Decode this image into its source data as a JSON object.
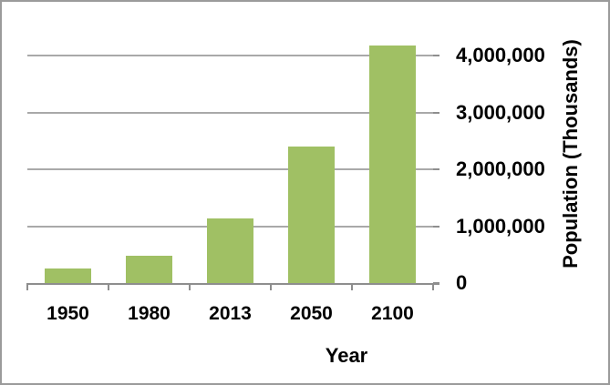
{
  "chart_data": {
    "type": "bar",
    "title": "",
    "xlabel": "Year",
    "ylabel": "Population (Thousands)",
    "categories": [
      "1950",
      "1980",
      "2013",
      "2050",
      "2100"
    ],
    "values": [
      250000,
      480000,
      1130000,
      2400000,
      4180000
    ],
    "y_ticks": [
      {
        "value": 0,
        "label": "0"
      },
      {
        "value": 1000000,
        "label": "1,000,000"
      },
      {
        "value": 2000000,
        "label": "2,000,000"
      },
      {
        "value": 3000000,
        "label": "3,000,000"
      },
      {
        "value": 4000000,
        "label": "4,000,000"
      }
    ],
    "ylim": [
      0,
      4944000
    ],
    "grid": true,
    "legend": "none",
    "y_axis_side": "right",
    "colors": {
      "bar": "#a0c064",
      "gridline": "#a9a9a9",
      "axis": "#8e8e8e",
      "text": "#000000",
      "background": "#ffffff",
      "frame_border": "#9b9b9b"
    }
  }
}
